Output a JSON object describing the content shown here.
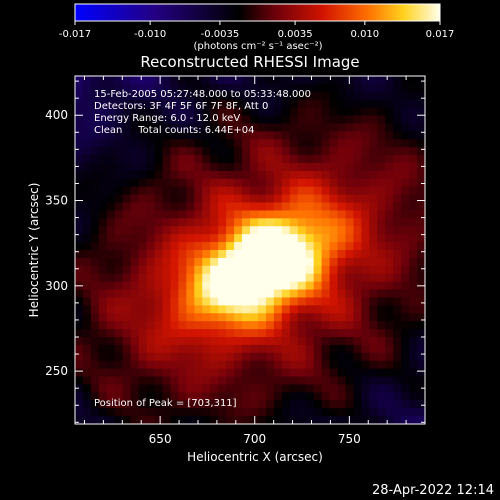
{
  "chart_data": {
    "type": "heatmap",
    "title": "Reconstructed RHESSI Image",
    "xlabel": "Heliocentric X (arcsec)",
    "ylabel": "Heliocentric Y (arcsec)",
    "xlim": [
      605,
      790
    ],
    "ylim": [
      219,
      423
    ],
    "xticks": [
      650,
      700,
      750
    ],
    "yticks": [
      250,
      300,
      350,
      400
    ],
    "colorbar": {
      "ticks": [
        "-0.017",
        "-0.010",
        "-0.0035",
        "0.0035",
        "0.010",
        "0.017"
      ],
      "tick_values": [
        -0.017,
        -0.01,
        -0.0035,
        0.0035,
        0.01,
        0.017
      ],
      "range": [
        -0.017,
        0.017
      ],
      "label": "(photons cm⁻² s⁻¹ asec⁻²)"
    },
    "annotations": {
      "time": "15-Feb-2005 05:27:48.000 to 05:33:48.000",
      "detectors": "Detectors: 3F 4F 5F 6F 7F 8F, Att 0",
      "energy": "Energy Range: 6.0 - 12.0 keV",
      "clean": "Clean     Total counts: 6.44E+04",
      "peak": "Position of Peak = [703,311]"
    },
    "peak": [
      703,
      311
    ],
    "source_orientation_deg": 35
  },
  "footer": {
    "date": "28-Apr-2022 12:14"
  }
}
